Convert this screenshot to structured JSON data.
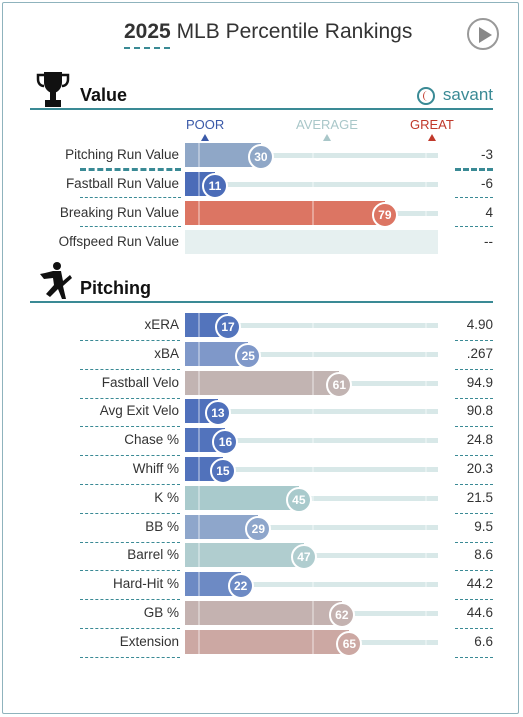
{
  "header": {
    "year": "2025",
    "title": "MLB Percentile Rankings"
  },
  "value_section": {
    "heading": "Value",
    "brand": "savant"
  },
  "legend": {
    "poor": "POOR",
    "average": "AVERAGE",
    "great": "GREAT"
  },
  "value_rows": [
    {
      "label": "Pitching Run Value",
      "percentile": 30,
      "value": "-3",
      "color": "#8fa7c7"
    },
    {
      "label": "Fastball Run Value",
      "percentile": 11,
      "value": "-6",
      "color": "#4b6cb8"
    },
    {
      "label": "Breaking Run Value",
      "percentile": 79,
      "value": "4",
      "color": "#dc7563"
    },
    {
      "label": "Offspeed Run Value",
      "percentile": null,
      "value": "--",
      "color": "#e6f0f0"
    }
  ],
  "pitching_section": {
    "heading": "Pitching"
  },
  "pitching_rows": [
    {
      "label": "xERA",
      "percentile": 17,
      "value": "4.90",
      "color": "#5374bc"
    },
    {
      "label": "xBA",
      "percentile": 25,
      "value": ".267",
      "color": "#7f98c9"
    },
    {
      "label": "Fastball Velo",
      "percentile": 61,
      "value": "94.9",
      "color": "#c2b4b2"
    },
    {
      "label": "Avg Exit Velo",
      "percentile": 13,
      "value": "90.8",
      "color": "#4f70bb"
    },
    {
      "label": "Chase %",
      "percentile": 16,
      "value": "24.8",
      "color": "#5273bc"
    },
    {
      "label": "Whiff %",
      "percentile": 15,
      "value": "20.3",
      "color": "#5172bb"
    },
    {
      "label": "K %",
      "percentile": 45,
      "value": "21.5",
      "color": "#a9cacc"
    },
    {
      "label": "BB %",
      "percentile": 29,
      "value": "9.5",
      "color": "#8ea6cb"
    },
    {
      "label": "Barrel %",
      "percentile": 47,
      "value": "8.6",
      "color": "#b0cdcf"
    },
    {
      "label": "Hard-Hit %",
      "percentile": 22,
      "value": "44.2",
      "color": "#6d8ac4"
    },
    {
      "label": "GB %",
      "percentile": 62,
      "value": "44.6",
      "color": "#c4b2b0"
    },
    {
      "label": "Extension",
      "percentile": 65,
      "value": "6.6",
      "color": "#cca8a3"
    }
  ]
}
